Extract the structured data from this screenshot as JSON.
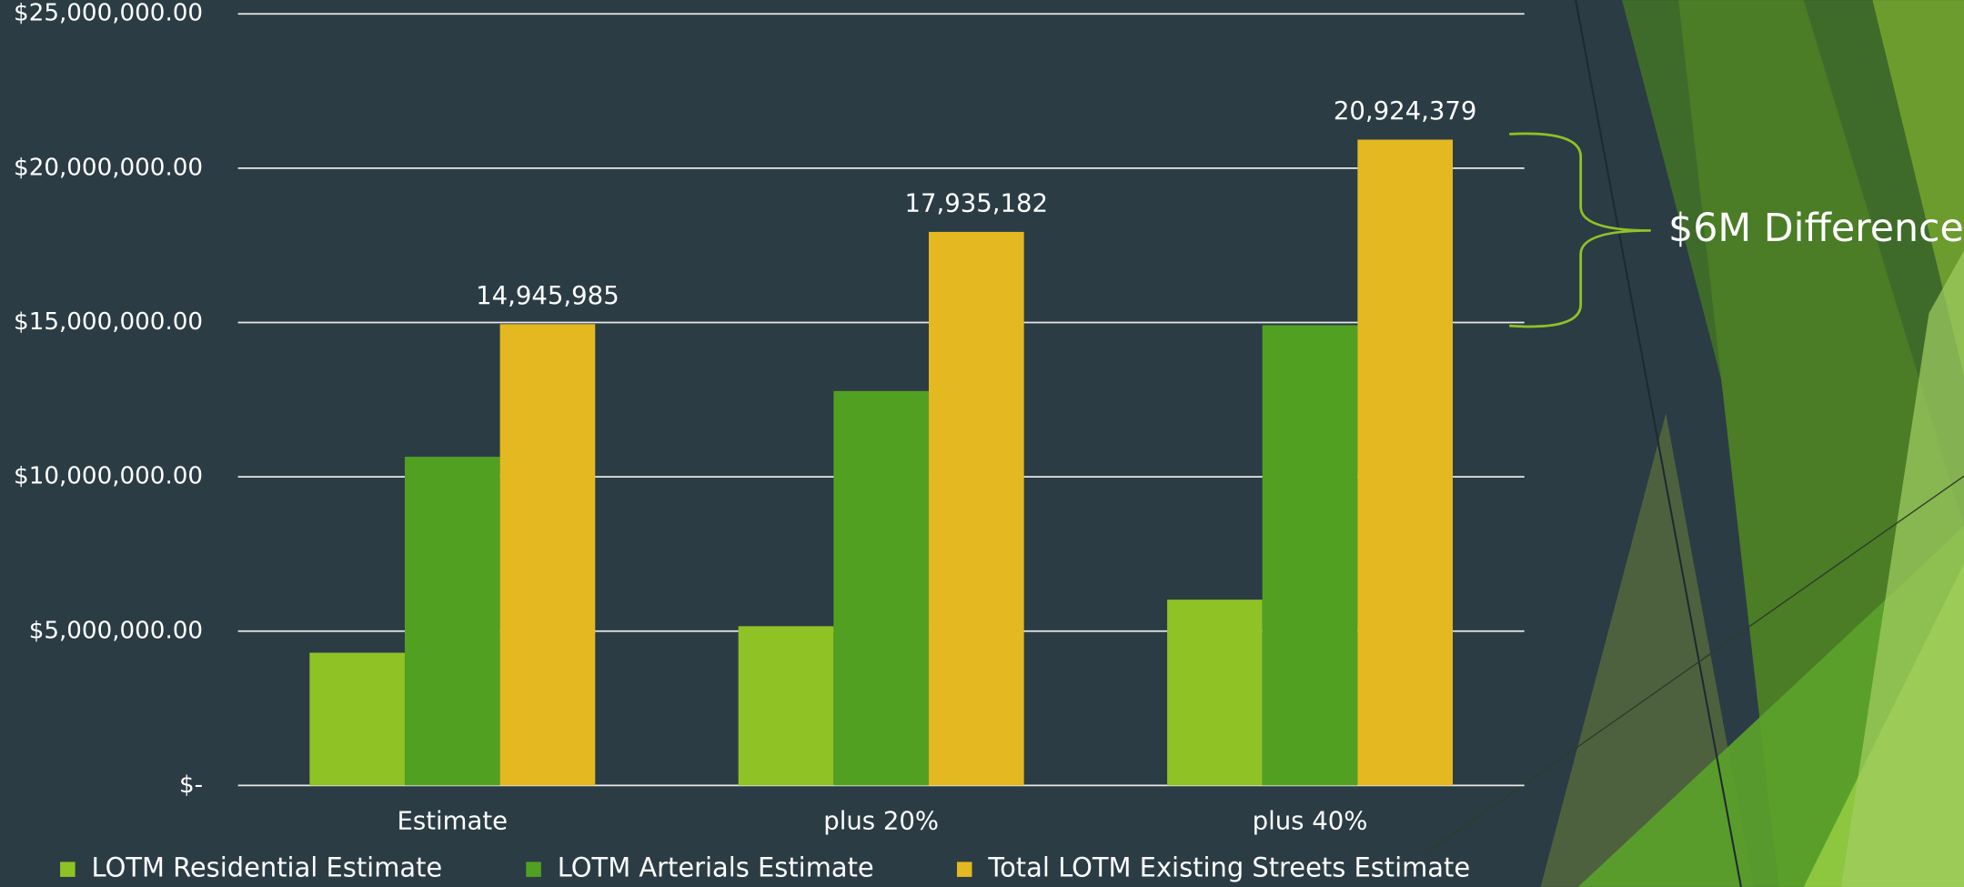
{
  "chart_data": {
    "type": "bar",
    "categories": [
      "Estimate",
      "plus 20%",
      "plus 40%"
    ],
    "series": [
      {
        "name": "LOTM Residential Estimate",
        "color": "#8fc225",
        "values": [
          4300000,
          5160000,
          6020000
        ]
      },
      {
        "name": "LOTM Arterials Estimate",
        "color": "#52a022",
        "values": [
          10650000,
          12780000,
          14910000
        ]
      },
      {
        "name": "Total LOTM Existing Streets Estimate",
        "color": "#e4b820",
        "values": [
          14945985,
          17935182,
          20924379
        ],
        "value_labels": [
          "14,945,985",
          "17,935,182",
          "20,924,379"
        ]
      }
    ],
    "ylim": [
      0,
      25000000
    ],
    "yticks": [
      {
        "value": 0,
        "label": "$-"
      },
      {
        "value": 5000000,
        "label": "$5,000,000.00"
      },
      {
        "value": 10000000,
        "label": "$10,000,000.00"
      },
      {
        "value": 15000000,
        "label": "$15,000,000.00"
      },
      {
        "value": 20000000,
        "label": "$20,000,000.00"
      },
      {
        "value": 25000000,
        "label": "$25,000,000.00"
      }
    ],
    "grid": true,
    "legend": "bottom",
    "annotation": "$6M Difference"
  }
}
